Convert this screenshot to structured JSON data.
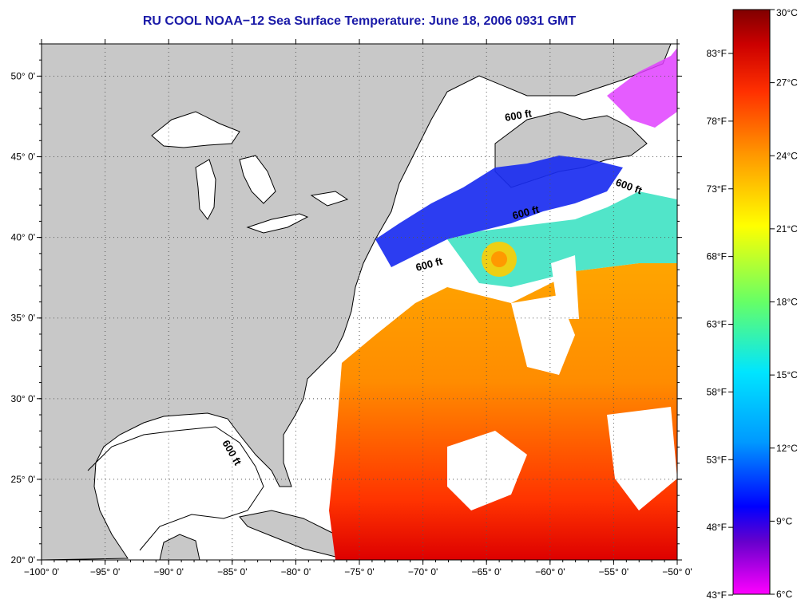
{
  "title": "RU COOL  NOAA−12  Sea Surface Temperature:  June 18, 2006 0931 GMT",
  "map": {
    "lon_range": [
      -100,
      -50
    ],
    "lat_range": [
      20,
      52
    ],
    "lon_ticks": [
      -100,
      -95,
      -90,
      -85,
      -80,
      -75,
      -70,
      -65,
      -60,
      -55,
      -50
    ],
    "lat_ticks": [
      20,
      25,
      30,
      35,
      40,
      45,
      50
    ],
    "lon_labels": [
      "−100° 0'",
      "−95° 0'",
      "−90° 0'",
      "−85° 0'",
      "−80° 0'",
      "−75° 0'",
      "−70° 0'",
      "−65° 0'",
      "−60° 0'",
      "−55° 0'",
      "−50° 0'"
    ],
    "lat_labels": [
      "20° 0'",
      "25° 0'",
      "30° 0'",
      "35° 0'",
      "40° 0'",
      "45° 0'",
      "50° 0'"
    ],
    "isobath_labels": [
      "600 ft",
      "600 ft",
      "600 ft",
      "600 ft",
      "600 ft"
    ],
    "colors": {
      "land": "#c8c8c8",
      "cloud": "#ffffff",
      "coast": "#000000"
    }
  },
  "colorbar": {
    "celsius": [
      "30°C",
      "27°C",
      "24°C",
      "21°C",
      "18°C",
      "15°C",
      "12°C",
      "9°C",
      "6°C"
    ],
    "fahrenheit": [
      "83°F",
      "78°F",
      "73°F",
      "68°F",
      "63°F",
      "58°F",
      "53°F",
      "48°F",
      "43°F"
    ],
    "range_c": [
      6,
      30
    ],
    "gradient": [
      "#8b0000",
      "#ff0000",
      "#ff8c00",
      "#ffd700",
      "#ffff00",
      "#7cfc00",
      "#00e0a0",
      "#00e5ff",
      "#00a0ff",
      "#0040ff",
      "#0000e0",
      "#7000c0",
      "#ff00ff"
    ]
  }
}
